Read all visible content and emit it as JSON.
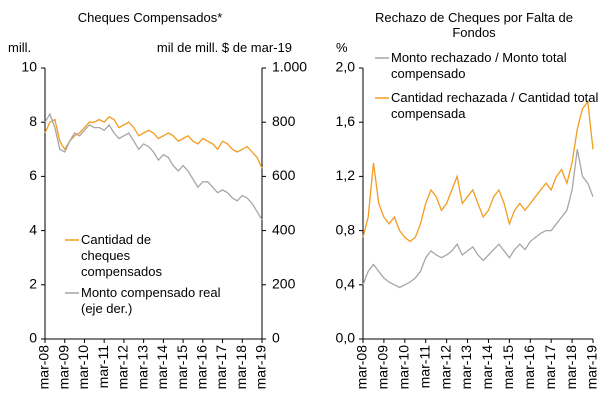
{
  "chart_data": [
    {
      "type": "line",
      "title": "Cheques Compensados*",
      "ylabel": "mill.",
      "y2label": "mil de mill. $ de mar-19",
      "categories": [
        "mar-08",
        null,
        null,
        null,
        "mar-09",
        null,
        null,
        null,
        "mar-10",
        null,
        null,
        null,
        "mar-11",
        null,
        null,
        null,
        "mar-12",
        null,
        null,
        null,
        "mar-13",
        null,
        null,
        null,
        "mar-14",
        null,
        null,
        null,
        "mar-15",
        null,
        null,
        null,
        "mar-16",
        null,
        null,
        null,
        "mar-17",
        null,
        null,
        null,
        "mar-18",
        null,
        null,
        null,
        "mar-19"
      ],
      "ylim": [
        0,
        10
      ],
      "yticks": [
        0,
        2,
        4,
        6,
        8,
        10
      ],
      "y2lim": [
        0,
        1000
      ],
      "y2ticks": [
        0,
        200,
        400,
        600,
        800,
        {
          "value": 1000,
          "label": "1.000"
        }
      ],
      "series": [
        {
          "name": "Cantidad de cheques compensados",
          "color": "#f39c1f",
          "values": [
            7.6,
            8.0,
            8.1,
            7.3,
            7.0,
            7.3,
            7.5,
            7.6,
            7.8,
            8.0,
            8.0,
            8.1,
            8.0,
            8.2,
            8.1,
            7.8,
            7.9,
            8.0,
            7.8,
            7.5,
            7.6,
            7.7,
            7.6,
            7.4,
            7.5,
            7.6,
            7.5,
            7.3,
            7.4,
            7.5,
            7.3,
            7.2,
            7.4,
            7.3,
            7.2,
            7.0,
            7.3,
            7.2,
            7.0,
            6.9,
            7.0,
            7.1,
            6.9,
            6.7,
            6.3
          ]
        },
        {
          "name": "Monto compensado real (eje der.)",
          "color": "#a6a6a6",
          "axis": "y2",
          "values": [
            800,
            830,
            780,
            700,
            690,
            730,
            760,
            750,
            770,
            790,
            780,
            780,
            770,
            790,
            760,
            740,
            750,
            760,
            730,
            700,
            720,
            710,
            690,
            660,
            680,
            670,
            640,
            620,
            640,
            620,
            590,
            560,
            580,
            580,
            560,
            540,
            550,
            540,
            520,
            510,
            530,
            520,
            500,
            470,
            440
          ]
        }
      ]
    },
    {
      "type": "line",
      "title": "Rechazo de Cheques por Falta de Fondos",
      "ylabel": "%",
      "categories": [
        "mar-08",
        null,
        null,
        null,
        "mar-09",
        null,
        null,
        null,
        "mar-10",
        null,
        null,
        null,
        "mar-11",
        null,
        null,
        null,
        "mar-12",
        null,
        null,
        null,
        "mar-13",
        null,
        null,
        null,
        "mar-14",
        null,
        null,
        null,
        "mar-15",
        null,
        null,
        null,
        "mar-16",
        null,
        null,
        null,
        "mar-17",
        null,
        null,
        null,
        "mar-18",
        null,
        null,
        null,
        "mar-19"
      ],
      "ylim": [
        0,
        2
      ],
      "yticks": [
        {
          "value": 0,
          "label": "0,0"
        },
        {
          "value": 0.4,
          "label": "0,4"
        },
        {
          "value": 0.8,
          "label": "0,8"
        },
        {
          "value": 1.2,
          "label": "1,2"
        },
        {
          "value": 1.6,
          "label": "1,6"
        },
        {
          "value": 2,
          "label": "2,0"
        }
      ],
      "series": [
        {
          "name": "Monto rechazado / Monto total compensado",
          "color": "#a6a6a6",
          "values": [
            0.4,
            0.5,
            0.55,
            0.5,
            0.45,
            0.42,
            0.4,
            0.38,
            0.4,
            0.42,
            0.45,
            0.5,
            0.6,
            0.65,
            0.62,
            0.6,
            0.62,
            0.65,
            0.7,
            0.62,
            0.65,
            0.68,
            0.62,
            0.58,
            0.62,
            0.66,
            0.7,
            0.65,
            0.6,
            0.66,
            0.7,
            0.66,
            0.72,
            0.75,
            0.78,
            0.8,
            0.8,
            0.85,
            0.9,
            0.95,
            1.1,
            1.4,
            1.2,
            1.15,
            1.05
          ]
        },
        {
          "name": "Cantidad rechazada / Cantidad total compensada",
          "color": "#f39c1f",
          "values": [
            0.75,
            0.9,
            1.3,
            1.0,
            0.9,
            0.85,
            0.9,
            0.8,
            0.75,
            0.72,
            0.75,
            0.85,
            1.0,
            1.1,
            1.05,
            0.95,
            1.0,
            1.1,
            1.2,
            1.0,
            1.05,
            1.1,
            1.0,
            0.9,
            0.95,
            1.05,
            1.1,
            1.0,
            0.85,
            0.95,
            1.0,
            0.95,
            1.0,
            1.05,
            1.1,
            1.15,
            1.1,
            1.2,
            1.25,
            1.15,
            1.3,
            1.55,
            1.7,
            1.75,
            1.4
          ]
        }
      ]
    }
  ]
}
